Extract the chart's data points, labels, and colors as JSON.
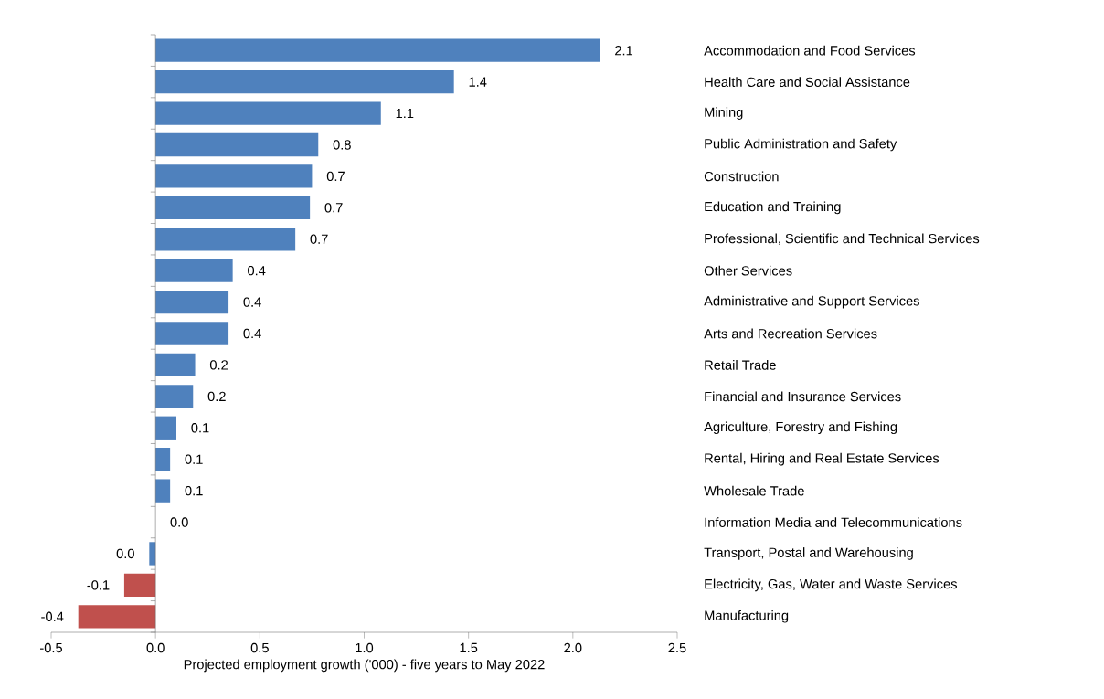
{
  "chart_data": {
    "type": "bar",
    "orientation": "horizontal",
    "categories": [
      "Accommodation and Food Services",
      "Health Care and Social Assistance",
      "Mining",
      "Public Administration and Safety",
      "Construction",
      "Education and Training",
      "Professional, Scientific and Technical Services",
      "Other Services",
      "Administrative and Support Services",
      "Arts and Recreation Services",
      "Retail Trade",
      "Financial and Insurance Services",
      "Agriculture, Forestry and Fishing",
      "Rental, Hiring and Real Estate Services",
      "Wholesale Trade",
      "Information Media and Telecommunications",
      "Transport, Postal and Warehousing",
      "Electricity, Gas, Water and Waste Services",
      "Manufacturing"
    ],
    "values": [
      2.13,
      1.43,
      1.08,
      0.78,
      0.75,
      0.74,
      0.67,
      0.37,
      0.35,
      0.35,
      0.19,
      0.18,
      0.1,
      0.07,
      0.07,
      0.0,
      -0.03,
      -0.15,
      -0.37
    ],
    "value_labels": [
      "2.1",
      "1.4",
      "1.1",
      "0.8",
      "0.7",
      "0.7",
      "0.7",
      "0.4",
      "0.4",
      "0.4",
      "0.2",
      "0.2",
      "0.1",
      "0.1",
      "0.1",
      "0.0",
      "0.0",
      "-0.1",
      "-0.4"
    ],
    "colors": [
      "#4f81bd",
      "#4f81bd",
      "#4f81bd",
      "#4f81bd",
      "#4f81bd",
      "#4f81bd",
      "#4f81bd",
      "#4f81bd",
      "#4f81bd",
      "#4f81bd",
      "#4f81bd",
      "#4f81bd",
      "#4f81bd",
      "#4f81bd",
      "#4f81bd",
      "#4f81bd",
      "#4f81bd",
      "#c0504d",
      "#c0504d"
    ],
    "xlabel": "Projected employment growth ('000) - five years to May 2022",
    "xticks": [
      {
        "value": -0.5,
        "label": "-0.5"
      },
      {
        "value": 0,
        "label": "0.0"
      },
      {
        "value": 0.5,
        "label": "0.5"
      },
      {
        "value": 1,
        "label": "1.0"
      },
      {
        "value": 1.5,
        "label": "1.5"
      },
      {
        "value": 2,
        "label": "2.0"
      },
      {
        "value": 2.5,
        "label": "2.5"
      }
    ],
    "xlim": [
      -0.5,
      2.5
    ]
  }
}
